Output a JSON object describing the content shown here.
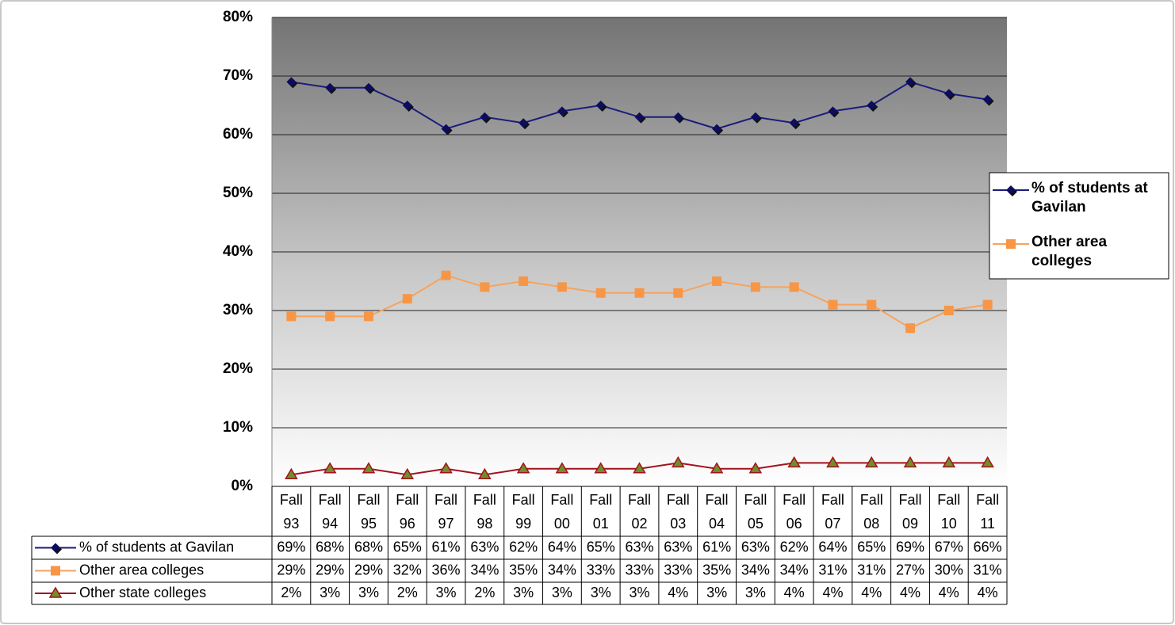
{
  "chart_data": {
    "type": "line",
    "categories": [
      "Fall 93",
      "Fall 94",
      "Fall 95",
      "Fall 96",
      "Fall 97",
      "Fall 98",
      "Fall 99",
      "Fall 00",
      "Fall 01",
      "Fall 02",
      "Fall 03",
      "Fall 04",
      "Fall 05",
      "Fall 06",
      "Fall 07",
      "Fall 08",
      "Fall 09",
      "Fall 10",
      "Fall 11"
    ],
    "series": [
      {
        "name": "% of students at Gavilan",
        "color": "#1c1c7c",
        "marker": "diamond",
        "marker_color": "#0d0d5c",
        "values": [
          69,
          68,
          68,
          65,
          61,
          63,
          62,
          64,
          65,
          63,
          63,
          61,
          63,
          62,
          64,
          65,
          69,
          67,
          66
        ],
        "value_labels": [
          "69%",
          "68%",
          "68%",
          "65%",
          "61%",
          "63%",
          "62%",
          "64%",
          "65%",
          "63%",
          "63%",
          "61%",
          "63%",
          "62%",
          "64%",
          "65%",
          "69%",
          "67%",
          "66%"
        ]
      },
      {
        "name": "Other area colleges",
        "color": "#f7a35c",
        "marker": "square",
        "marker_color": "#f79646",
        "values": [
          29,
          29,
          29,
          32,
          36,
          34,
          35,
          34,
          33,
          33,
          33,
          35,
          34,
          34,
          31,
          31,
          27,
          30,
          31
        ],
        "value_labels": [
          "29%",
          "29%",
          "29%",
          "32%",
          "36%",
          "34%",
          "35%",
          "34%",
          "33%",
          "33%",
          "33%",
          "35%",
          "34%",
          "34%",
          "31%",
          "31%",
          "27%",
          "30%",
          "31%"
        ]
      },
      {
        "name": "Other state colleges",
        "color": "#a3121c",
        "marker": "triangle",
        "marker_color": "#6f8f2a",
        "values": [
          2,
          3,
          3,
          2,
          3,
          2,
          3,
          3,
          3,
          3,
          4,
          3,
          3,
          4,
          4,
          4,
          4,
          4,
          4
        ],
        "value_labels": [
          "2%",
          "3%",
          "3%",
          "2%",
          "3%",
          "2%",
          "3%",
          "3%",
          "3%",
          "3%",
          "4%",
          "3%",
          "3%",
          "4%",
          "4%",
          "4%",
          "4%",
          "4%",
          "4%"
        ]
      }
    ],
    "ylim": [
      0,
      80
    ],
    "yticks": [
      {
        "value": 0,
        "label": "0%"
      },
      {
        "value": 10,
        "label": "10%"
      },
      {
        "value": 20,
        "label": "20%"
      },
      {
        "value": 30,
        "label": "30%"
      },
      {
        "value": 40,
        "label": "40%"
      },
      {
        "value": 50,
        "label": "50%"
      },
      {
        "value": 60,
        "label": "60%"
      },
      {
        "value": 70,
        "label": "70%"
      },
      {
        "value": 80,
        "label": "80%"
      }
    ],
    "grid": true,
    "legend": "right",
    "data_table": true
  }
}
